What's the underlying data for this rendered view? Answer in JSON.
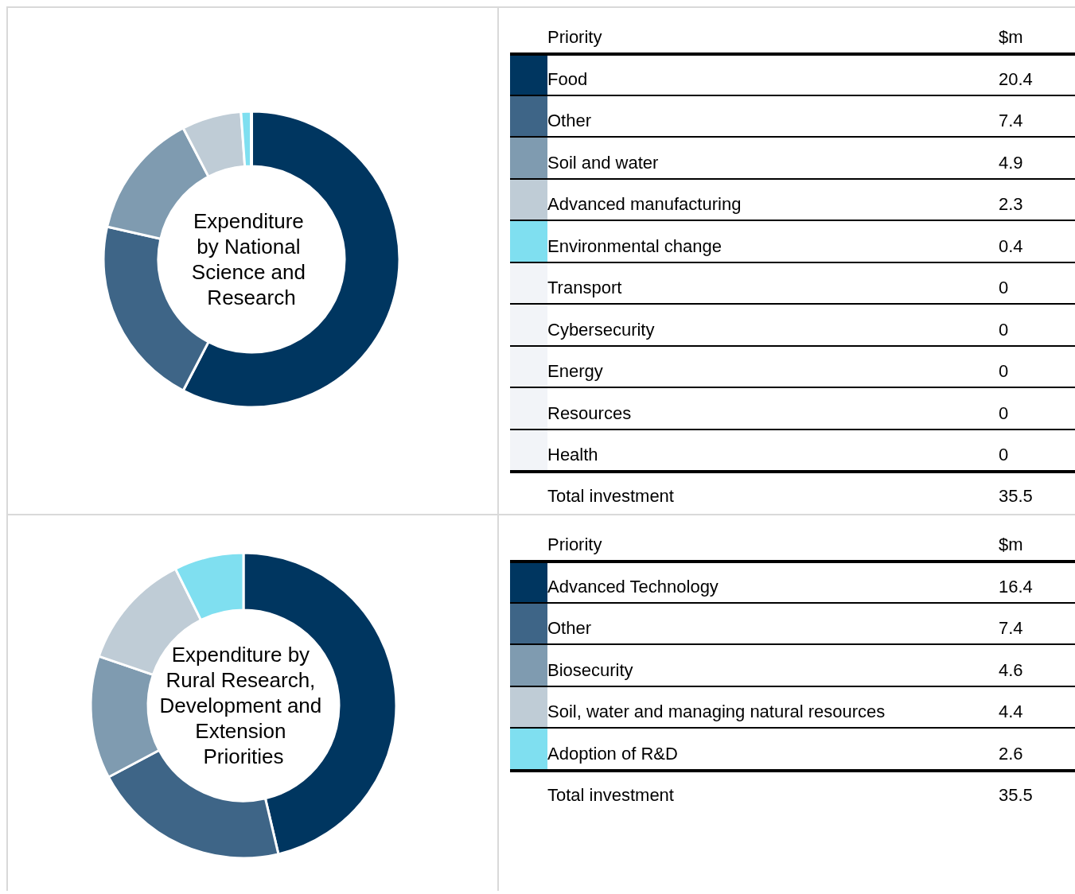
{
  "chart_data": [
    {
      "type": "donut",
      "title": "Expenditure by National Science and Research",
      "legend_title": "Priority",
      "legend": "right",
      "value_labels": [
        "20.4",
        "7.4",
        "4.9",
        "2.3",
        "0.4",
        "0",
        "0",
        "0",
        "0",
        "0"
      ],
      "annotations": [
        "$m",
        "Total investment"
      ],
      "totals": [
        "35.5"
      ],
      "categories": [
        "Food",
        "Other",
        "Soil and water",
        "Advanced manufacturing",
        "Environmental change",
        "Transport",
        "Cybersecurity",
        "Energy",
        "Resources",
        "Health"
      ],
      "values": [
        20.4,
        7.4,
        4.9,
        2.3,
        0.4,
        0,
        0,
        0,
        0,
        0
      ],
      "colors": [
        "#003660",
        "#3e6587",
        "#7f9bb0",
        "#bfccd6",
        "#7fdff0",
        "#f2f4f8",
        "#f2f4f8",
        "#f2f4f8",
        "#f2f4f8",
        "#f2f4f8"
      ]
    },
    {
      "type": "donut",
      "title": "Expenditure by Rural Research, Development and Extension Priorities",
      "legend_title": "Priority",
      "legend": "right",
      "value_labels": [
        "16.4",
        "7.4",
        "4.6",
        "4.4",
        "2.6"
      ],
      "annotations": [
        "$m",
        "Total investment"
      ],
      "totals": [
        "35.5"
      ],
      "categories": [
        "Advanced Technology",
        "Other",
        "Biosecurity",
        "Soil, water and managing natural resources",
        "Adoption of R&D"
      ],
      "values": [
        16.4,
        7.4,
        4.6,
        4.4,
        2.6
      ],
      "colors": [
        "#003660",
        "#3e6587",
        "#7f9bb0",
        "#bfccd6",
        "#7fdff0"
      ]
    }
  ]
}
